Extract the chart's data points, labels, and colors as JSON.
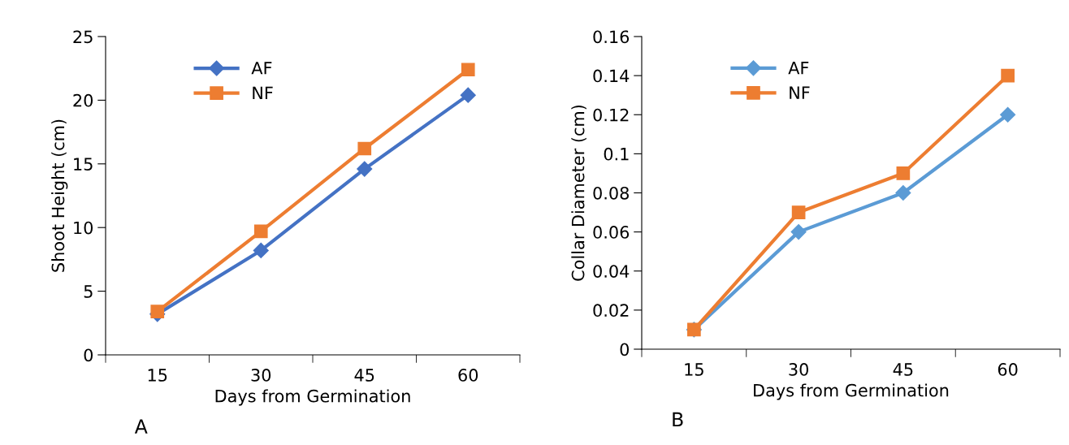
{
  "chart_data": [
    {
      "type": "line",
      "categories": [
        "15",
        "30",
        "45",
        "60"
      ],
      "xlabel": "Days from Germination",
      "ylabel": "Shoot Height (cm)",
      "ylim": [
        0,
        25
      ],
      "yticks": [
        0,
        5,
        10,
        15,
        20,
        25
      ],
      "grid": false,
      "legend": "top left",
      "annotations": [
        "A"
      ],
      "series": [
        {
          "name": "AF",
          "color": "#4472c4",
          "marker": "diamond",
          "values": [
            3.2,
            8.2,
            14.6,
            20.4
          ]
        },
        {
          "name": "NF",
          "color": "#ed7d31",
          "marker": "square",
          "values": [
            3.4,
            9.7,
            16.2,
            22.4
          ]
        }
      ]
    },
    {
      "type": "line",
      "categories": [
        "15",
        "30",
        "45",
        "60"
      ],
      "xlabel": "Days from Germination",
      "ylabel": "Collar Diameter (cm)",
      "ylim": [
        0,
        0.16
      ],
      "yticks": [
        0,
        0.02,
        0.04,
        0.06,
        0.08,
        0.1,
        0.12,
        0.14,
        0.16
      ],
      "grid": false,
      "legend": "top left",
      "annotations": [
        "B"
      ],
      "series": [
        {
          "name": "AF",
          "color": "#5b9bd5",
          "marker": "diamond",
          "values": [
            0.01,
            0.06,
            0.08,
            0.12
          ]
        },
        {
          "name": "NF",
          "color": "#ed7d31",
          "marker": "square",
          "values": [
            0.01,
            0.07,
            0.09,
            0.14
          ]
        }
      ]
    }
  ]
}
